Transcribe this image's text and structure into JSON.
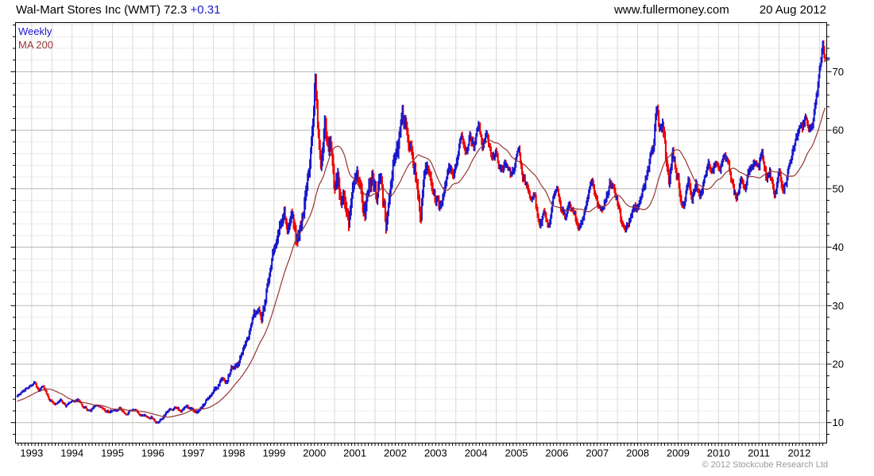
{
  "header": {
    "title": "Wal-Mart Stores Inc (WMT) 72.3",
    "change": "+0.31",
    "website": "www.fullermoney.com",
    "date": "20 Aug 2012"
  },
  "legend": {
    "weekly_label": "Weekly",
    "ma_label": "MA 200"
  },
  "footer": {
    "copyright": "© 2012 Stockcube Research Ltd"
  },
  "colors": {
    "up": "#1818CC",
    "down": "#EE0000",
    "ma": "#993333",
    "grid_minor": "#ECECEC",
    "grid_vertical": "#D8D8D8",
    "grid_major": "#B8B8B8",
    "border": "#000000",
    "text": "#000000",
    "copyright": "#9A9A9A"
  },
  "chart_data": {
    "type": "line",
    "title": "Wal-Mart Stores Inc (WMT) 72.3 +0.31",
    "xlabel": "",
    "ylabel": "",
    "x_domain": [
      1992.6,
      2012.68
    ],
    "y_domain": [
      6.5,
      78.4
    ],
    "x_ticks": [
      1993,
      1994,
      1995,
      1996,
      1997,
      1998,
      1999,
      2000,
      2001,
      2002,
      2003,
      2004,
      2005,
      2006,
      2007,
      2008,
      2009,
      2010,
      2011,
      2012
    ],
    "y_ticks": [
      10,
      20,
      30,
      40,
      50,
      60,
      70
    ],
    "y_minor_step": 2,
    "x_minor_step": 0.5,
    "grid": true,
    "legend_position": "top-left",
    "last_price": 72.3,
    "series": [
      {
        "name": "Weekly",
        "anchors": [
          [
            1992.62,
            14.4
          ],
          [
            1992.75,
            15.2
          ],
          [
            1992.9,
            15.9
          ],
          [
            1993.0,
            16.3
          ],
          [
            1993.08,
            16.8
          ],
          [
            1993.18,
            15.3
          ],
          [
            1993.28,
            16.2
          ],
          [
            1993.45,
            13.9
          ],
          [
            1993.6,
            13.2
          ],
          [
            1993.72,
            13.9
          ],
          [
            1993.85,
            12.9
          ],
          [
            1994.0,
            13.5
          ],
          [
            1994.15,
            14.0
          ],
          [
            1994.3,
            12.6
          ],
          [
            1994.45,
            12.1
          ],
          [
            1994.6,
            12.9
          ],
          [
            1994.75,
            12.2
          ],
          [
            1994.9,
            11.9
          ],
          [
            1995.05,
            12.1
          ],
          [
            1995.2,
            12.5
          ],
          [
            1995.35,
            11.5
          ],
          [
            1995.5,
            12.3
          ],
          [
            1995.65,
            11.6
          ],
          [
            1995.8,
            11.1
          ],
          [
            1995.95,
            11.0
          ],
          [
            1996.1,
            10.1
          ],
          [
            1996.25,
            10.9
          ],
          [
            1996.4,
            12.1
          ],
          [
            1996.55,
            12.6
          ],
          [
            1996.7,
            12.0
          ],
          [
            1996.85,
            12.7
          ],
          [
            1997.0,
            12.2
          ],
          [
            1997.12,
            11.8
          ],
          [
            1997.3,
            13.4
          ],
          [
            1997.45,
            14.9
          ],
          [
            1997.6,
            16.3
          ],
          [
            1997.72,
            17.7
          ],
          [
            1997.82,
            17.0
          ],
          [
            1997.95,
            19.4
          ],
          [
            1998.1,
            19.9
          ],
          [
            1998.25,
            22.5
          ],
          [
            1998.4,
            25.6
          ],
          [
            1998.5,
            28.4
          ],
          [
            1998.6,
            29.3
          ],
          [
            1998.7,
            27.9
          ],
          [
            1998.85,
            33.5
          ],
          [
            1998.95,
            38.0
          ],
          [
            1999.05,
            41.0
          ],
          [
            1999.15,
            43.5
          ],
          [
            1999.25,
            46.0
          ],
          [
            1999.35,
            43.0
          ],
          [
            1999.45,
            45.5
          ],
          [
            1999.55,
            41.0
          ],
          [
            1999.65,
            43.5
          ],
          [
            1999.75,
            46.5
          ],
          [
            1999.85,
            52.0
          ],
          [
            1999.95,
            60.0
          ],
          [
            2000.02,
            69.5
          ],
          [
            2000.1,
            58.5
          ],
          [
            2000.17,
            54.0
          ],
          [
            2000.25,
            62.0
          ],
          [
            2000.33,
            56.5
          ],
          [
            2000.42,
            57.5
          ],
          [
            2000.5,
            49.5
          ],
          [
            2000.58,
            52.0
          ],
          [
            2000.66,
            46.8
          ],
          [
            2000.75,
            48.5
          ],
          [
            2000.85,
            43.8
          ],
          [
            2000.95,
            51.0
          ],
          [
            2001.05,
            53.0
          ],
          [
            2001.15,
            49.0
          ],
          [
            2001.25,
            46.0
          ],
          [
            2001.35,
            50.5
          ],
          [
            2001.45,
            51.5
          ],
          [
            2001.55,
            48.0
          ],
          [
            2001.63,
            52.0
          ],
          [
            2001.72,
            46.5
          ],
          [
            2001.78,
            43.8
          ],
          [
            2001.88,
            51.0
          ],
          [
            2001.98,
            55.5
          ],
          [
            2002.08,
            57.0
          ],
          [
            2002.17,
            63.0
          ],
          [
            2002.3,
            59.5
          ],
          [
            2002.4,
            56.5
          ],
          [
            2002.5,
            53.0
          ],
          [
            2002.57,
            49.0
          ],
          [
            2002.63,
            45.8
          ],
          [
            2002.72,
            52.5
          ],
          [
            2002.82,
            54.5
          ],
          [
            2002.92,
            50.0
          ],
          [
            2003.02,
            48.0
          ],
          [
            2003.12,
            46.5
          ],
          [
            2003.25,
            52.0
          ],
          [
            2003.35,
            53.8
          ],
          [
            2003.45,
            52.3
          ],
          [
            2003.55,
            55.8
          ],
          [
            2003.65,
            58.8
          ],
          [
            2003.75,
            56.3
          ],
          [
            2003.85,
            59.0
          ],
          [
            2003.95,
            57.5
          ],
          [
            2004.07,
            61.0
          ],
          [
            2004.17,
            57.0
          ],
          [
            2004.27,
            59.5
          ],
          [
            2004.4,
            54.8
          ],
          [
            2004.5,
            56.5
          ],
          [
            2004.6,
            52.8
          ],
          [
            2004.72,
            54.2
          ],
          [
            2004.85,
            52.5
          ],
          [
            2004.95,
            53.5
          ],
          [
            2005.05,
            57.3
          ],
          [
            2005.15,
            52.5
          ],
          [
            2005.25,
            50.5
          ],
          [
            2005.35,
            47.5
          ],
          [
            2005.45,
            48.8
          ],
          [
            2005.57,
            43.8
          ],
          [
            2005.68,
            45.5
          ],
          [
            2005.8,
            43.5
          ],
          [
            2005.9,
            47.5
          ],
          [
            2006.0,
            50.2
          ],
          [
            2006.1,
            46.8
          ],
          [
            2006.2,
            45.2
          ],
          [
            2006.3,
            47.5
          ],
          [
            2006.42,
            46.5
          ],
          [
            2006.52,
            43.2
          ],
          [
            2006.65,
            44.8
          ],
          [
            2006.75,
            48.5
          ],
          [
            2006.88,
            51.8
          ],
          [
            2007.0,
            47.8
          ],
          [
            2007.1,
            46.2
          ],
          [
            2007.2,
            48.0
          ],
          [
            2007.32,
            51.2
          ],
          [
            2007.42,
            49.5
          ],
          [
            2007.52,
            47.5
          ],
          [
            2007.62,
            43.5
          ],
          [
            2007.72,
            42.8
          ],
          [
            2007.82,
            45.5
          ],
          [
            2007.92,
            47.5
          ],
          [
            2008.02,
            46.5
          ],
          [
            2008.12,
            49.5
          ],
          [
            2008.22,
            52.5
          ],
          [
            2008.32,
            55.5
          ],
          [
            2008.4,
            57.5
          ],
          [
            2008.47,
            63.2
          ],
          [
            2008.55,
            59.5
          ],
          [
            2008.62,
            61.0
          ],
          [
            2008.7,
            55.5
          ],
          [
            2008.78,
            51.5
          ],
          [
            2008.86,
            55.5
          ],
          [
            2008.95,
            53.5
          ],
          [
            2009.05,
            49.5
          ],
          [
            2009.13,
            46.8
          ],
          [
            2009.25,
            51.5
          ],
          [
            2009.35,
            48.5
          ],
          [
            2009.45,
            50.5
          ],
          [
            2009.55,
            49.0
          ],
          [
            2009.65,
            51.5
          ],
          [
            2009.75,
            54.5
          ],
          [
            2009.85,
            53.0
          ],
          [
            2009.95,
            54.5
          ],
          [
            2010.05,
            53.5
          ],
          [
            2010.15,
            55.8
          ],
          [
            2010.25,
            54.0
          ],
          [
            2010.35,
            50.5
          ],
          [
            2010.45,
            48.2
          ],
          [
            2010.55,
            51.5
          ],
          [
            2010.65,
            50.5
          ],
          [
            2010.78,
            53.8
          ],
          [
            2010.9,
            54.5
          ],
          [
            2011.0,
            53.8
          ],
          [
            2011.08,
            56.5
          ],
          [
            2011.18,
            52.0
          ],
          [
            2011.28,
            52.5
          ],
          [
            2011.38,
            48.8
          ],
          [
            2011.5,
            52.8
          ],
          [
            2011.6,
            49.5
          ],
          [
            2011.7,
            52.0
          ],
          [
            2011.8,
            55.5
          ],
          [
            2011.9,
            57.5
          ],
          [
            2012.0,
            59.8
          ],
          [
            2012.08,
            60.5
          ],
          [
            2012.16,
            62.0
          ],
          [
            2012.24,
            59.8
          ],
          [
            2012.34,
            61.5
          ],
          [
            2012.44,
            66.0
          ],
          [
            2012.52,
            71.0
          ],
          [
            2012.58,
            74.8
          ],
          [
            2012.63,
            72.3
          ]
        ]
      },
      {
        "name": "MA 200",
        "derived": "simple moving average of Weekly",
        "window_weeks": 40
      }
    ],
    "lead_in_anchors": [
      [
        1991.6,
        11.8
      ],
      [
        1991.9,
        12.8
      ],
      [
        1992.2,
        13.5
      ],
      [
        1992.45,
        14.0
      ]
    ],
    "volatility_anchors": [
      [
        1991.6,
        0.35
      ],
      [
        1996.5,
        0.35
      ],
      [
        1997.3,
        0.45
      ],
      [
        1997.9,
        0.6
      ],
      [
        1998.6,
        0.9
      ],
      [
        1999.2,
        1.4
      ],
      [
        1999.9,
        2.0
      ],
      [
        2000.3,
        2.2
      ],
      [
        2001.0,
        1.8
      ],
      [
        2002.3,
        2.0
      ],
      [
        2003.0,
        1.4
      ],
      [
        2004.0,
        1.1
      ],
      [
        2005.0,
        1.0
      ],
      [
        2006.0,
        0.95
      ],
      [
        2007.0,
        0.95
      ],
      [
        2008.0,
        1.1
      ],
      [
        2008.7,
        1.6
      ],
      [
        2009.3,
        1.1
      ],
      [
        2010.0,
        0.95
      ],
      [
        2011.0,
        1.05
      ],
      [
        2011.6,
        1.2
      ],
      [
        2012.2,
        1.0
      ],
      [
        2012.63,
        1.1
      ]
    ]
  }
}
